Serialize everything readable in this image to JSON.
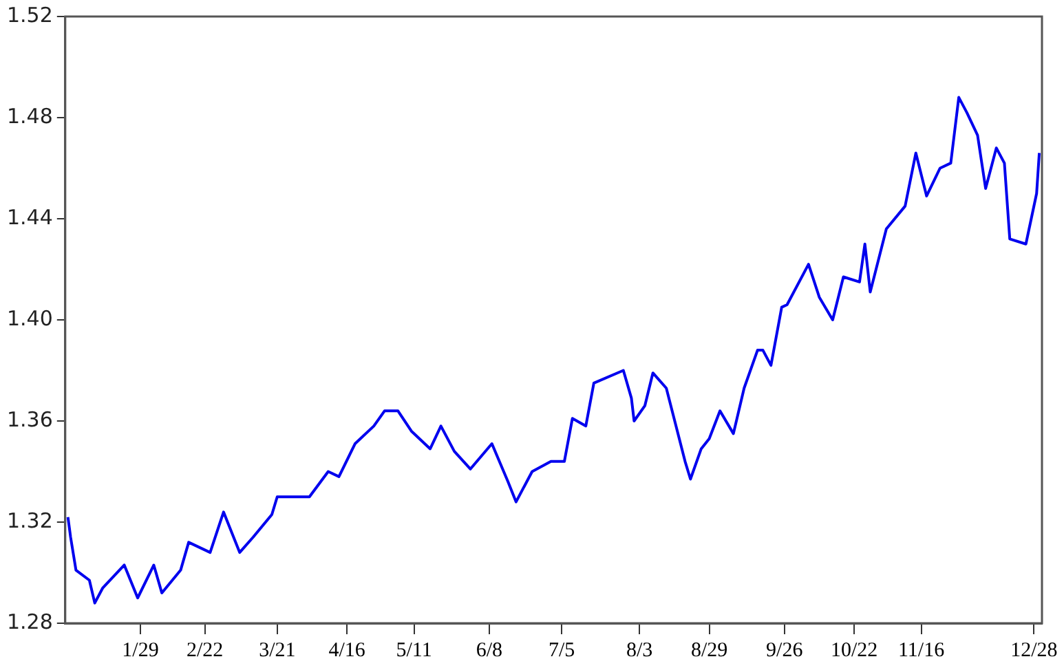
{
  "chart_data": {
    "type": "line",
    "legend": false,
    "grid": false,
    "marker": "none",
    "line_style": "solid",
    "xlim": [
      "--01-01",
      "--12-31"
    ],
    "xticks": [
      {
        "value": "--01-29",
        "label": "1/29"
      },
      {
        "value": "--02-22",
        "label": "2/22"
      },
      {
        "value": "--03-21",
        "label": "3/21"
      },
      {
        "value": "--04-16",
        "label": "4/16"
      },
      {
        "value": "--05-11",
        "label": "5/11"
      },
      {
        "value": "--06-08",
        "label": "6/8"
      },
      {
        "value": "--07-05",
        "label": "7/5"
      },
      {
        "value": "--08-03",
        "label": "8/3"
      },
      {
        "value": "--08-29",
        "label": "8/29"
      },
      {
        "value": "--09-26",
        "label": "9/26"
      },
      {
        "value": "--10-22",
        "label": "10/22"
      },
      {
        "value": "--11-16",
        "label": "11/16"
      },
      {
        "value": "--12-28",
        "label": "12/28"
      }
    ],
    "ylim": [
      1.28,
      1.52
    ],
    "yticks": [
      1.28,
      1.32,
      1.36,
      {
        "value": 1.4,
        "label": "1.40"
      },
      1.44,
      1.48,
      1.52
    ],
    "x": [
      "--01-02",
      "--01-03",
      "--01-05",
      "--01-10",
      "--01-12",
      "--01-15",
      "--01-23",
      "--01-28",
      "--02-03",
      "--02-06",
      "--02-13",
      "--02-16",
      "--02-24",
      "--03-01",
      "--03-07",
      "--03-12",
      "--03-19",
      "--03-21",
      "--03-28",
      "--04-02",
      "--04-09",
      "--04-13",
      "--04-19",
      "--04-26",
      "--04-30",
      "--05-05",
      "--05-10",
      "--05-17",
      "--05-21",
      "--05-26",
      "--06-01",
      "--06-09",
      "--06-15",
      "--06-18",
      "--06-24",
      "--07-01",
      "--07-06",
      "--07-09",
      "--07-14",
      "--07-17",
      "--07-28",
      "--07-31",
      "--08-01",
      "--08-05",
      "--08-08",
      "--08-13",
      "--08-20",
      "--08-22",
      "--08-26",
      "--08-29",
      "--09-02",
      "--09-07",
      "--09-11",
      "--09-16",
      "--09-18",
      "--09-21",
      "--09-25",
      "--09-27",
      "--10-05",
      "--10-09",
      "--10-14",
      "--10-18",
      "--10-24",
      "--10-26",
      "--10-28",
      "--11-03",
      "--11-10",
      "--11-14",
      "--11-18",
      "--11-23",
      "--11-27",
      "--11-30",
      "--12-03",
      "--12-07",
      "--12-10",
      "--12-14",
      "--12-17",
      "--12-19",
      "--12-25",
      "--12-29",
      "--12-30"
    ],
    "series": [
      {
        "color": "#0000ee",
        "values": [
          1.322,
          1.314,
          1.301,
          1.297,
          1.288,
          1.294,
          1.303,
          1.29,
          1.303,
          1.292,
          1.301,
          1.312,
          1.308,
          1.324,
          1.308,
          1.314,
          1.323,
          1.33,
          1.33,
          1.33,
          1.34,
          1.338,
          1.351,
          1.358,
          1.364,
          1.364,
          1.356,
          1.349,
          1.358,
          1.348,
          1.341,
          1.351,
          1.336,
          1.328,
          1.34,
          1.344,
          1.344,
          1.361,
          1.358,
          1.375,
          1.38,
          1.369,
          1.36,
          1.366,
          1.379,
          1.373,
          1.344,
          1.337,
          1.349,
          1.353,
          1.364,
          1.355,
          1.373,
          1.388,
          1.388,
          1.382,
          1.405,
          1.406,
          1.422,
          1.409,
          1.4,
          1.417,
          1.415,
          1.43,
          1.411,
          1.436,
          1.445,
          1.466,
          1.449,
          1.46,
          1.462,
          1.488,
          1.482,
          1.473,
          1.452,
          1.468,
          1.462,
          1.432,
          1.43,
          1.45,
          1.466
        ]
      }
    ]
  }
}
